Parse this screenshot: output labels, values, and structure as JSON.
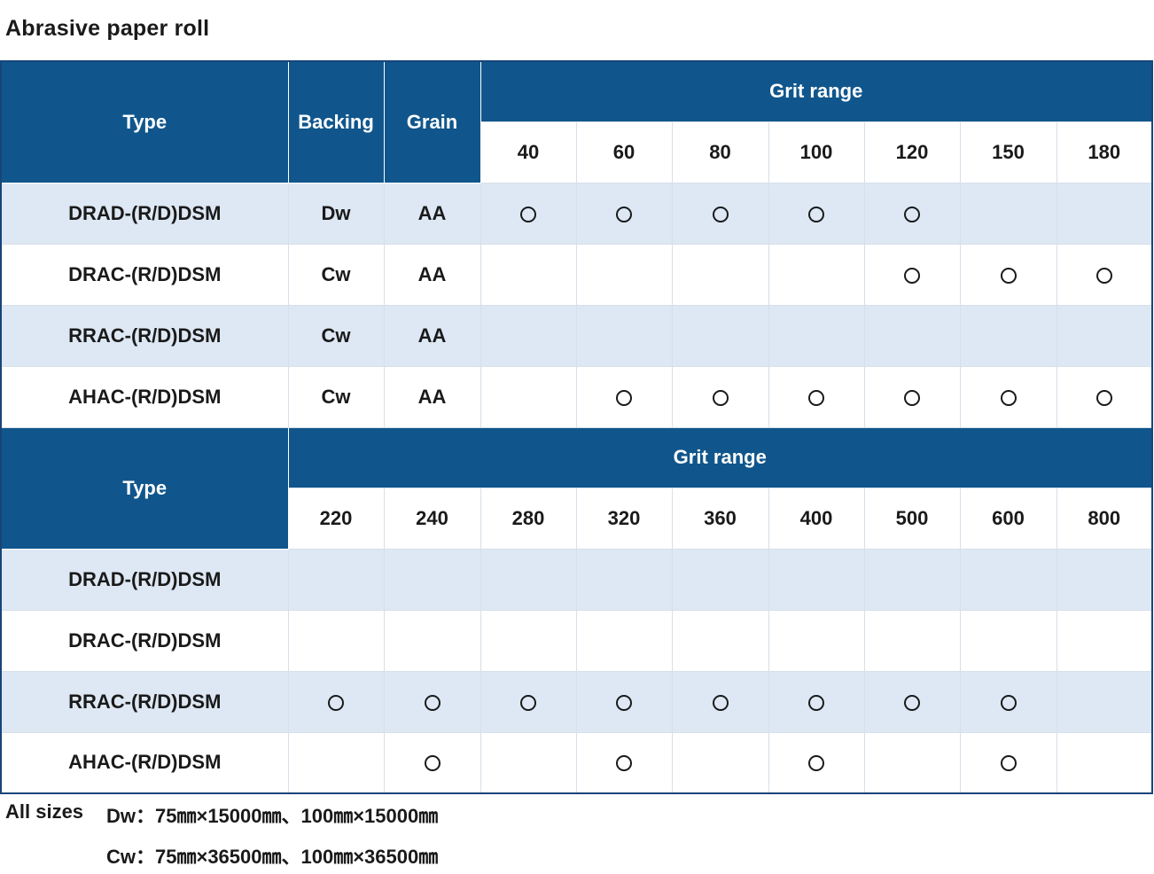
{
  "title": "Abrasive paper roll",
  "colors": {
    "header_bg": "#10568c",
    "alt_row_bg": "#dde8f4",
    "border": "#17457a"
  },
  "table1": {
    "headers": {
      "type": "Type",
      "backing": "Backing",
      "grain": "Grain",
      "grit_range": "Grit range"
    },
    "grits": [
      "40",
      "60",
      "80",
      "100",
      "120",
      "150",
      "180"
    ],
    "rows": [
      {
        "type": "DRAD-(R/D)DSM",
        "backing": "Dw",
        "grain": "AA",
        "marks": [
          1,
          1,
          1,
          1,
          1,
          0,
          0
        ]
      },
      {
        "type": "DRAC-(R/D)DSM",
        "backing": "Cw",
        "grain": "AA",
        "marks": [
          0,
          0,
          0,
          0,
          1,
          1,
          1
        ]
      },
      {
        "type": "RRAC-(R/D)DSM",
        "backing": "Cw",
        "grain": "AA",
        "marks": [
          0,
          0,
          0,
          0,
          0,
          0,
          0
        ]
      },
      {
        "type": "AHAC-(R/D)DSM",
        "backing": "Cw",
        "grain": "AA",
        "marks": [
          0,
          1,
          1,
          1,
          1,
          1,
          1
        ]
      }
    ]
  },
  "table2": {
    "headers": {
      "type": "Type",
      "grit_range": "Grit range"
    },
    "grits": [
      "220",
      "240",
      "280",
      "320",
      "360",
      "400",
      "500",
      "600",
      "800"
    ],
    "rows": [
      {
        "type": "DRAD-(R/D)DSM",
        "marks": [
          0,
          0,
          0,
          0,
          0,
          0,
          0,
          0,
          0
        ]
      },
      {
        "type": "DRAC-(R/D)DSM",
        "marks": [
          0,
          0,
          0,
          0,
          0,
          0,
          0,
          0,
          0
        ]
      },
      {
        "type": "RRAC-(R/D)DSM",
        "marks": [
          1,
          1,
          1,
          1,
          1,
          1,
          1,
          1,
          0
        ]
      },
      {
        "type": "AHAC-(R/D)DSM",
        "marks": [
          0,
          1,
          0,
          1,
          0,
          1,
          0,
          1,
          0
        ]
      }
    ]
  },
  "notes": {
    "label": "All sizes",
    "line1": "Dw：75㎜×15000㎜、100㎜×15000㎜",
    "line2": "Cw：75㎜×36500㎜、100㎜×36500㎜"
  }
}
